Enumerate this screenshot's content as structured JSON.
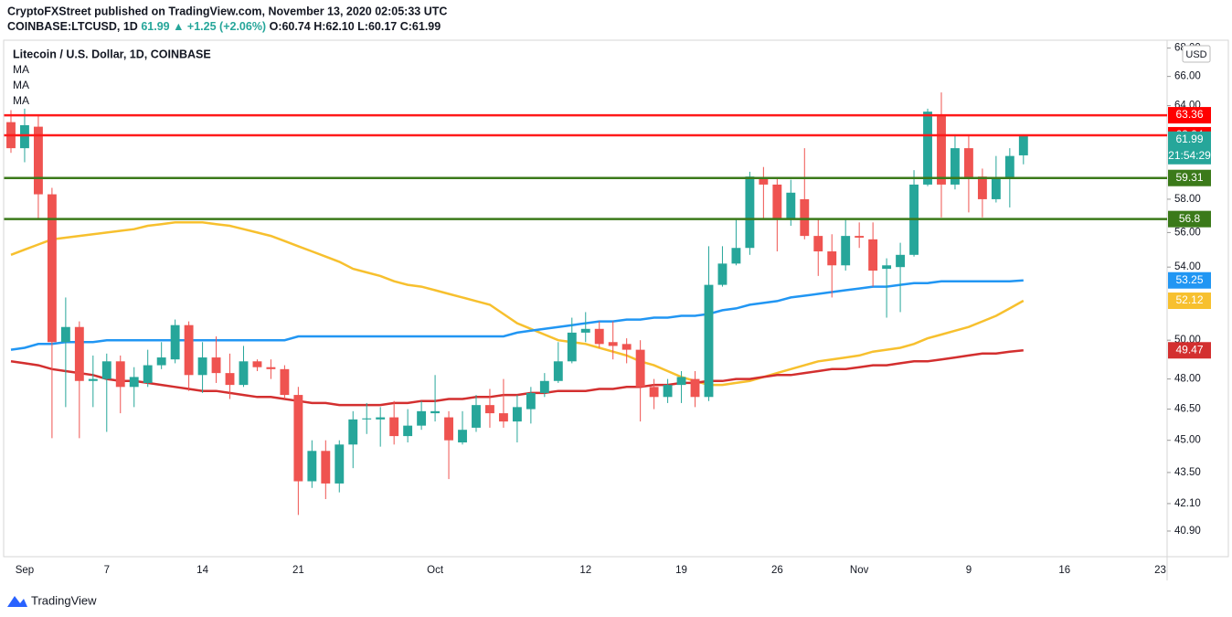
{
  "chart_data": {
    "type": "candlestick",
    "attribution": "CryptoFXStreet published on TradingView.com, November 13, 2020 02:05:33 UTC",
    "symbol": "COINBASE:LTCUSD, 1D",
    "change": "61.99 ▲ +1.25 (+2.06%)",
    "ohlc_text": "O:60.74 H:62.10 L:60.17 C:61.99",
    "title": "Litecoin / U.S. Dollar, 1D, COINBASE",
    "currency": "USD",
    "countdown": "21:54:29",
    "footer": "TradingView",
    "log_scale": true,
    "grid": false,
    "up_color": "#26a69a",
    "down_color": "#ef5350",
    "categories": [
      null,
      "Sep",
      null,
      null,
      null,
      null,
      null,
      "7",
      null,
      null,
      null,
      null,
      null,
      null,
      "14",
      null,
      null,
      null,
      null,
      null,
      null,
      "21",
      null,
      null,
      null,
      null,
      null,
      null,
      null,
      null,
      null,
      "Oct",
      null,
      null,
      null,
      null,
      null,
      null,
      null,
      null,
      null,
      null,
      "12",
      null,
      null,
      null,
      null,
      null,
      null,
      "19",
      null,
      null,
      null,
      null,
      null,
      null,
      "26",
      null,
      null,
      null,
      null,
      null,
      "Nov",
      null,
      null,
      null,
      null,
      null,
      null,
      null,
      "9",
      null,
      null,
      null,
      null,
      null,
      null,
      "16",
      null,
      null,
      null,
      null,
      null,
      null,
      "23"
    ],
    "open": [
      62.9,
      61.2,
      62.6,
      58.3,
      49.9,
      50.7,
      47.9,
      48.0,
      48.9,
      47.6,
      47.8,
      48.7,
      49.0,
      50.8,
      48.2,
      49.1,
      48.3,
      47.7,
      48.9,
      48.6,
      48.5,
      47.2,
      43.1,
      44.5,
      43.0,
      44.8,
      46.0,
      46.0,
      46.1,
      45.2,
      45.7,
      46.3,
      46.1,
      44.9,
      45.6,
      46.7,
      46.3,
      45.9,
      46.5,
      47.3,
      47.9,
      48.9,
      50.4,
      50.6,
      49.9,
      49.8,
      49.5,
      47.6,
      47.1,
      47.7,
      48.0,
      47.1,
      53.0,
      54.2,
      55.1,
      59.3,
      58.9,
      56.8,
      58.0,
      55.8,
      54.9,
      54.1,
      55.8,
      55.6,
      53.9,
      54.0,
      54.7,
      58.9,
      63.4,
      58.9,
      61.2,
      59.4,
      58.0,
      59.3,
      60.74,
      null,
      null,
      null,
      null,
      null,
      null,
      null,
      null,
      null,
      null
    ],
    "high": [
      63.7,
      63.8,
      63.4,
      58.7,
      52.3,
      51.0,
      49.2,
      49.3,
      49.2,
      48.6,
      49.5,
      49.9,
      51.1,
      51.0,
      49.9,
      50.2,
      49.3,
      49.7,
      49.0,
      49.0,
      48.7,
      47.6,
      45.0,
      45.0,
      45.0,
      46.4,
      46.8,
      46.6,
      46.9,
      46.5,
      46.9,
      48.2,
      46.4,
      46.4,
      47.2,
      47.5,
      48.0,
      47.2,
      47.6,
      48.3,
      49.9,
      51.2,
      51.5,
      51.0,
      51.0,
      50.1,
      50.0,
      48.0,
      48.0,
      48.4,
      48.4,
      55.2,
      55.2,
      56.8,
      59.7,
      60.0,
      59.3,
      59.2,
      61.2,
      56.8,
      55.9,
      56.8,
      56.6,
      56.6,
      54.5,
      55.4,
      59.8,
      63.8,
      64.9,
      62.1,
      62.0,
      59.9,
      60.7,
      61.2,
      62.1,
      null,
      null,
      null,
      null,
      null,
      null,
      null,
      null,
      null,
      null
    ],
    "low": [
      60.9,
      60.3,
      56.8,
      45.1,
      46.6,
      45.1,
      46.6,
      45.4,
      46.3,
      46.6,
      47.6,
      48.5,
      48.8,
      47.4,
      47.3,
      47.8,
      47.0,
      47.6,
      48.4,
      48.0,
      47.0,
      41.6,
      42.8,
      42.3,
      42.6,
      43.7,
      45.3,
      44.7,
      44.8,
      44.9,
      45.5,
      45.9,
      43.2,
      44.8,
      45.4,
      45.6,
      45.6,
      44.9,
      45.8,
      47.1,
      47.8,
      48.8,
      49.9,
      49.6,
      49.0,
      48.8,
      45.9,
      46.5,
      46.8,
      46.8,
      46.6,
      46.9,
      52.9,
      54.1,
      54.7,
      56.8,
      54.9,
      56.4,
      55.6,
      53.5,
      52.3,
      53.8,
      55.1,
      52.9,
      51.2,
      51.5,
      54.6,
      58.8,
      56.9,
      58.6,
      57.2,
      56.9,
      57.8,
      57.5,
      60.17,
      null,
      null,
      null,
      null,
      null,
      null,
      null,
      null,
      null,
      null
    ],
    "close": [
      61.2,
      62.7,
      58.3,
      49.9,
      50.7,
      47.9,
      48.0,
      48.9,
      47.6,
      48.1,
      48.7,
      49.1,
      50.8,
      48.2,
      49.1,
      48.3,
      47.7,
      48.9,
      48.6,
      48.5,
      47.2,
      43.1,
      44.5,
      43.0,
      44.8,
      46.0,
      46.05,
      46.1,
      45.2,
      45.7,
      46.4,
      46.4,
      45.0,
      45.5,
      46.7,
      46.3,
      45.9,
      46.6,
      47.3,
      47.9,
      48.9,
      50.4,
      50.6,
      49.8,
      49.7,
      49.5,
      47.6,
      47.1,
      47.7,
      48.1,
      47.1,
      53.0,
      54.2,
      55.1,
      59.4,
      58.9,
      56.8,
      58.4,
      55.8,
      54.9,
      54.1,
      55.8,
      55.7,
      53.8,
      54.1,
      54.7,
      58.9,
      63.6,
      58.9,
      61.2,
      59.3,
      58.0,
      59.3,
      60.7,
      61.99,
      null,
      null,
      null,
      null,
      null,
      null,
      null,
      null,
      null,
      null
    ],
    "series": [
      {
        "name": "MA",
        "color": "#f7c02e",
        "values": [
          54.7,
          55.0,
          55.3,
          55.6,
          55.7,
          55.8,
          55.9,
          56.0,
          56.1,
          56.2,
          56.4,
          56.5,
          56.6,
          56.6,
          56.6,
          56.5,
          56.4,
          56.2,
          56.0,
          55.8,
          55.5,
          55.2,
          54.9,
          54.6,
          54.3,
          53.9,
          53.7,
          53.5,
          53.2,
          53.0,
          52.9,
          52.7,
          52.5,
          52.3,
          52.1,
          51.9,
          51.4,
          50.9,
          50.6,
          50.3,
          50.0,
          49.9,
          49.8,
          49.6,
          49.4,
          49.2,
          48.9,
          48.7,
          48.4,
          48.1,
          47.9,
          47.7,
          47.7,
          47.8,
          47.9,
          48.1,
          48.3,
          48.5,
          48.7,
          48.9,
          49.0,
          49.1,
          49.2,
          49.4,
          49.5,
          49.6,
          49.8,
          50.1,
          50.3,
          50.5,
          50.7,
          51.0,
          51.3,
          51.7,
          52.12,
          null,
          null,
          null,
          null,
          null,
          null,
          null,
          null,
          null,
          null
        ]
      },
      {
        "name": "MA",
        "color": "#2196f3",
        "values": [
          49.5,
          49.6,
          49.8,
          49.8,
          49.9,
          49.9,
          49.9,
          50.0,
          50.0,
          50.0,
          50.0,
          50.0,
          50.0,
          50.0,
          50.0,
          50.0,
          50.0,
          50.0,
          50.0,
          50.0,
          50.0,
          50.2,
          50.2,
          50.2,
          50.2,
          50.2,
          50.2,
          50.2,
          50.2,
          50.2,
          50.2,
          50.2,
          50.2,
          50.2,
          50.2,
          50.2,
          50.2,
          50.4,
          50.5,
          50.6,
          50.7,
          50.8,
          50.9,
          51.0,
          51.0,
          51.1,
          51.1,
          51.2,
          51.2,
          51.3,
          51.3,
          51.4,
          51.6,
          51.7,
          51.9,
          52.0,
          52.1,
          52.3,
          52.4,
          52.5,
          52.6,
          52.7,
          52.8,
          52.9,
          52.9,
          53.0,
          53.1,
          53.1,
          53.2,
          53.2,
          53.2,
          53.2,
          53.2,
          53.2,
          53.25,
          null,
          null,
          null,
          null,
          null,
          null,
          null,
          null,
          null,
          null
        ]
      },
      {
        "name": "MA",
        "color": "#d32f2f",
        "values": [
          48.9,
          48.8,
          48.7,
          48.5,
          48.4,
          48.3,
          48.2,
          48.0,
          47.9,
          47.9,
          47.8,
          47.7,
          47.6,
          47.5,
          47.4,
          47.4,
          47.3,
          47.2,
          47.1,
          47.1,
          47.0,
          46.9,
          46.8,
          46.8,
          46.7,
          46.7,
          46.7,
          46.7,
          46.8,
          46.8,
          46.9,
          46.9,
          47.0,
          47.0,
          47.1,
          47.1,
          47.2,
          47.2,
          47.3,
          47.3,
          47.4,
          47.4,
          47.4,
          47.5,
          47.5,
          47.6,
          47.6,
          47.7,
          47.7,
          47.8,
          47.8,
          47.9,
          47.9,
          48.0,
          48.0,
          48.1,
          48.2,
          48.2,
          48.3,
          48.4,
          48.5,
          48.5,
          48.6,
          48.7,
          48.7,
          48.8,
          48.9,
          48.9,
          49.0,
          49.1,
          49.2,
          49.3,
          49.3,
          49.4,
          49.47,
          null,
          null,
          null,
          null,
          null,
          null,
          null,
          null,
          null,
          null
        ]
      }
    ],
    "hlines": [
      {
        "value": 63.36,
        "color": "#ff1a1a"
      },
      {
        "value": 62.04,
        "color": "#ff1a1a"
      },
      {
        "value": 59.31,
        "color": "#3b7a1a"
      },
      {
        "value": 56.8,
        "color": "#3b7a1a"
      }
    ],
    "ylim": [
      39.85,
      68.5
    ],
    "yticks": [
      {
        "value": 40.9,
        "label": "40.90"
      },
      {
        "value": 42.1,
        "label": "42.10"
      },
      {
        "value": 43.5,
        "label": "43.50"
      },
      {
        "value": 45,
        "label": "45.00"
      },
      {
        "value": 46.5,
        "label": "46.50"
      },
      {
        "value": 48,
        "label": "48.00"
      },
      {
        "value": 50,
        "label": "50.00"
      },
      {
        "value": 54,
        "label": "54.00"
      },
      {
        "value": 56,
        "label": "56.00"
      },
      {
        "value": 58,
        "label": "58.00"
      },
      {
        "value": 64,
        "label": "64.00"
      },
      {
        "value": 66,
        "label": "66.00"
      },
      {
        "value": 68,
        "label": "68.00"
      }
    ]
  }
}
